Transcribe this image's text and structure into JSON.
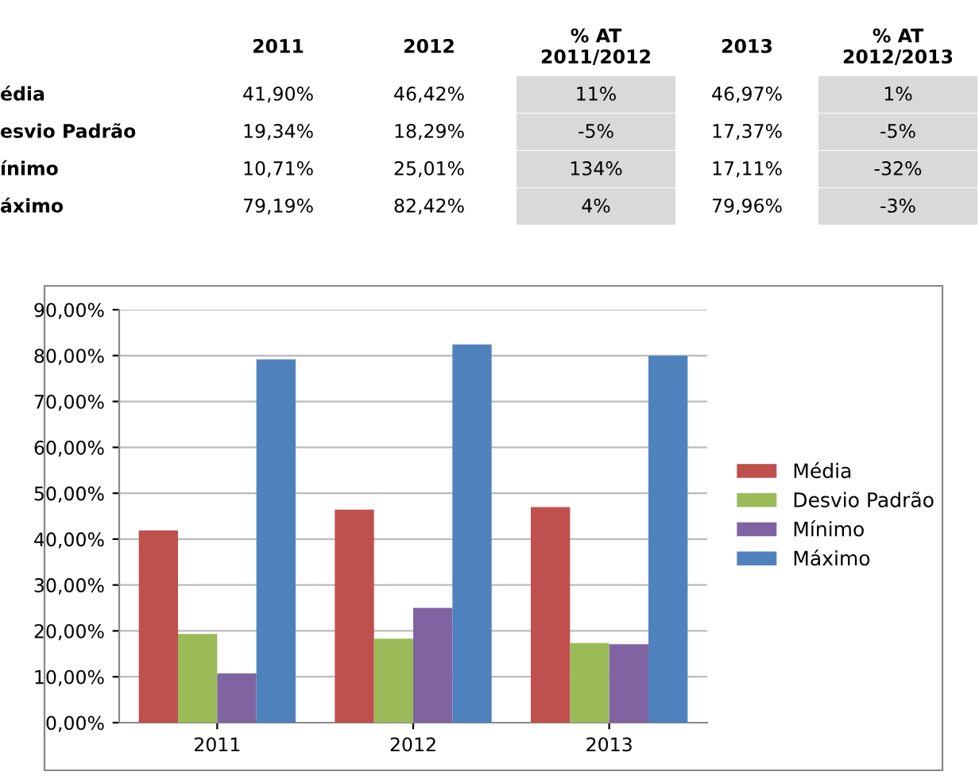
{
  "chart_data": [
    {
      "type": "other",
      "annotations": [
        "2011",
        "2012",
        "% AT\n2011/2012",
        "2013",
        "% AT\n2012/2013",
        "édia",
        "41,90%",
        "46,42%",
        "11%",
        "46,97%",
        "1%",
        "esvio Padrão",
        "19,34%",
        "18,29%",
        "-5%",
        "17,37%",
        "-5%",
        "ínimo",
        "10,71%",
        "25,01%",
        "134%",
        "17,11%",
        "-32%",
        "áximo",
        "79,19%",
        "82,42%",
        "4%",
        "79,96%",
        "-3%"
      ]
    },
    {
      "type": "bar",
      "categories": [
        "2011",
        "2012",
        "2013"
      ],
      "series": [
        {
          "name": "Média",
          "color": "#c0504d",
          "values": [
            41.9,
            46.42,
            46.97
          ]
        },
        {
          "name": "Desvio Padrão",
          "color": "#9bbb59",
          "values": [
            19.34,
            18.29,
            17.37
          ]
        },
        {
          "name": "Mínimo",
          "color": "#8064a2",
          "values": [
            10.71,
            25.01,
            17.11
          ]
        },
        {
          "name": "Máximo",
          "color": "#4f81bd",
          "values": [
            79.19,
            82.42,
            79.96
          ]
        }
      ],
      "ylim": [
        0,
        90
      ],
      "yticks": [
        {
          "value": 0,
          "label": "0,00%"
        },
        {
          "value": 10,
          "label": "10,00%"
        },
        {
          "value": 20,
          "label": "20,00%"
        },
        {
          "value": 30,
          "label": "30,00%"
        },
        {
          "value": 40,
          "label": "40,00%"
        },
        {
          "value": 50,
          "label": "50,00%"
        },
        {
          "value": 60,
          "label": "60,00%"
        },
        {
          "value": 70,
          "label": "70,00%"
        },
        {
          "value": 80,
          "label": "80,00%"
        },
        {
          "value": 90,
          "label": "90,00%"
        }
      ],
      "grid": "y",
      "legend": "right"
    }
  ]
}
